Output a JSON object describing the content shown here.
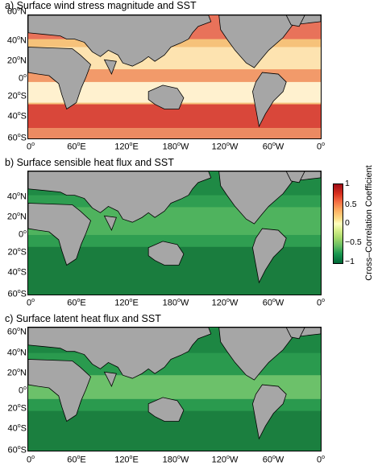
{
  "panels": [
    {
      "title": "a) Surface wind stress magnitude and SST"
    },
    {
      "title": "b) Surface sensible heat flux and SST"
    },
    {
      "title": "c) Surface latent heat flux and SST"
    }
  ],
  "lat_labels": [
    {
      "deg": "60",
      "unit": "o",
      "hem": "N"
    },
    {
      "deg": "40",
      "unit": "o",
      "hem": "N"
    },
    {
      "deg": "20",
      "unit": "o",
      "hem": "N"
    },
    {
      "deg": "0",
      "unit": "o",
      "hem": ""
    },
    {
      "deg": "20",
      "unit": "o",
      "hem": "S"
    },
    {
      "deg": "40",
      "unit": "o",
      "hem": "S"
    },
    {
      "deg": "60",
      "unit": "o",
      "hem": "S"
    }
  ],
  "lon_labels": [
    {
      "deg": "0",
      "unit": "o",
      "hem": ""
    },
    {
      "deg": "60",
      "unit": "o",
      "hem": "E"
    },
    {
      "deg": "120",
      "unit": "o",
      "hem": "E"
    },
    {
      "deg": "180",
      "unit": "o",
      "hem": "W"
    },
    {
      "deg": "120",
      "unit": "o",
      "hem": "W"
    },
    {
      "deg": "60",
      "unit": "o",
      "hem": "W"
    },
    {
      "deg": "0",
      "unit": "o",
      "hem": ""
    }
  ],
  "colorbar": {
    "title": "Cross–Correlation Coefficient",
    "ticks": [
      "1",
      "0.5",
      "0",
      "−0.5",
      "−1"
    ],
    "colors": {
      "high": "#9e0c16",
      "mid": "#ffffbf",
      "low": "#006837",
      "land": "#a6a6a6"
    }
  }
}
